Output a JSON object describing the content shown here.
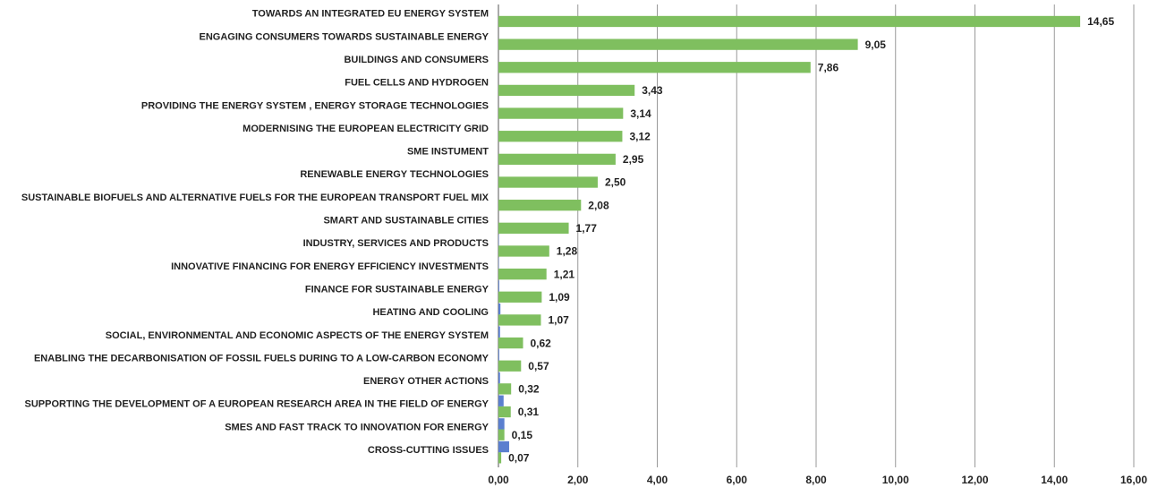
{
  "chart_data": {
    "type": "hbar",
    "categories": [
      "TOWARDS AN INTEGRATED EU ENERGY SYSTEM",
      "ENGAGING CONSUMERS TOWARDS SUSTAINABLE ENERGY",
      "BUILDINGS AND CONSUMERS",
      "FUEL CELLS AND HYDROGEN",
      "PROVIDING THE  ENERGY SYSTEM , ENERGY STORAGE TECHNOLOGIES",
      "MODERNISING THE EUROPEAN ELECTRICITY GRID",
      "SME INSTUMENT",
      "RENEWABLE ENERGY TECHNOLOGIES",
      "SUSTAINABLE BIOFUELS  AND  ALTERNATIVE FUELS FOR  THE  EUROPEAN TRANSPORT FUEL MIX",
      "SMART AND SUSTAINABLE CITIES",
      "INDUSTRY, SERVICES AND PRODUCTS",
      "INNOVATIVE FINANCING FOR ENERGY EFFICIENCY INVESTMENTS",
      "FINANCE FOR SUSTAINABLE ENERGY",
      "HEATING AND COOLING",
      "SOCIAL, ENVIRONMENTAL AND ECONOMIC ASPECTS OF THE ENERGY SYSTEM",
      "ENABLING  THE  DECARBONISATION  OF FOSSIL FUELS DURING   TO  A  LOW-CARBON ECONOMY",
      "ENERGY OTHER ACTIONS",
      "SUPPORTING THE DEVELOPMENT OF A EUROPEAN RESEARCH AREA IN THE FIELD OF ENERGY",
      "SMES AND FAST TRACK TO INNOVATION FOR ENERGY",
      "CROSS-CUTTING ISSUES"
    ],
    "series": [
      {
        "color": "#7fbf5f",
        "values": [
          14.65,
          9.05,
          7.86,
          3.43,
          3.14,
          3.12,
          2.95,
          2.5,
          2.08,
          1.77,
          1.28,
          1.21,
          1.09,
          1.07,
          0.62,
          0.57,
          0.32,
          0.31,
          0.15,
          0.07
        ],
        "value_labels": [
          "14,65",
          "9,05",
          "7,86",
          "3,43",
          "3,14",
          "3,12",
          "2,95",
          "2,50",
          "2,08",
          "1,77",
          "1,28",
          "1,21",
          "1,09",
          "1,07",
          "0,62",
          "0,57",
          "0,32",
          "0,31",
          "0,15",
          "0,07"
        ]
      },
      {
        "color": "#5b7fcf",
        "values": [
          0,
          0,
          0,
          0,
          0,
          0,
          0,
          0,
          0,
          0,
          0.01,
          0.01,
          0.02,
          0.05,
          0.04,
          0.02,
          0.04,
          0.13,
          0.15,
          0.27
        ]
      }
    ],
    "xlim": [
      0,
      16
    ],
    "xticks": [
      {
        "value": 0,
        "label": "0,00"
      },
      {
        "value": 2,
        "label": "2,00"
      },
      {
        "value": 4,
        "label": "4,00"
      },
      {
        "value": 6,
        "label": "6,00"
      },
      {
        "value": 8,
        "label": "8,00"
      },
      {
        "value": 10,
        "label": "10,00"
      },
      {
        "value": 12,
        "label": "12,00"
      },
      {
        "value": 14,
        "label": "14,00"
      },
      {
        "value": 16,
        "label": "16,00"
      }
    ],
    "grid": true
  }
}
